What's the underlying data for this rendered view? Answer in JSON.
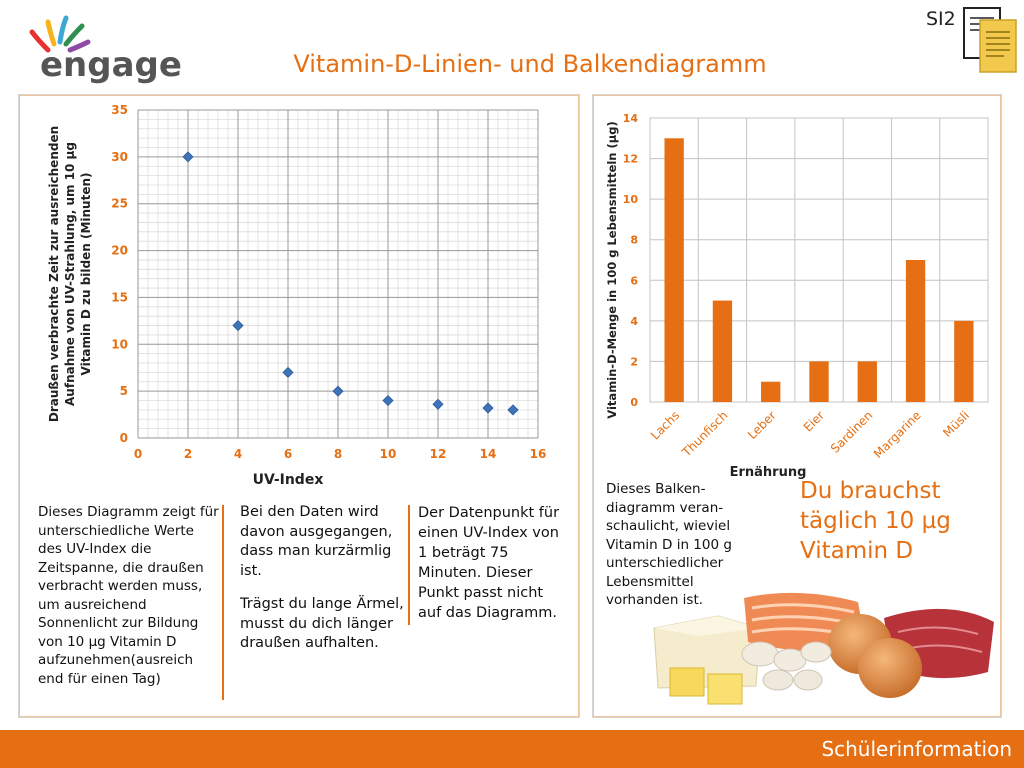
{
  "header": {
    "logo_text": "engage",
    "title": "Vitamin-D-Linien- und Balkendiagramm",
    "badge": "SI2"
  },
  "chart_data": [
    {
      "type": "scatter",
      "xlabel": "UV-Index",
      "ylabel_lines": [
        "Draußen verbrachte Zeit zur ausreichenden",
        "Aufnahme von UV-Strahlung, um 10 µg",
        "Vitamin D zu bilden (Minuten)"
      ],
      "xlim": [
        0,
        16
      ],
      "ylim": [
        0,
        35
      ],
      "xticks": [
        0,
        2,
        4,
        6,
        8,
        10,
        12,
        14,
        16
      ],
      "yticks": [
        0,
        5,
        10,
        15,
        20,
        25,
        30,
        35
      ],
      "grid": true,
      "x": [
        2,
        4,
        6,
        8,
        10,
        12,
        14,
        15
      ],
      "y": [
        30,
        12,
        7,
        5,
        4,
        3.6,
        3.2,
        3
      ],
      "color": "#3e73b9"
    },
    {
      "type": "bar",
      "categories": [
        "Lachs",
        "Thunfisch",
        "Leber",
        "Eier",
        "Sardinen",
        "Margarine",
        "Müsli"
      ],
      "values": [
        13,
        5,
        1,
        2,
        2,
        7,
        4
      ],
      "xlabel": "Ernährung",
      "ylabel": "Vitamin-D-Menge in 100 g Lebensmitteln (µg)",
      "ylim": [
        0,
        14
      ],
      "yticks": [
        0,
        2,
        4,
        6,
        8,
        10,
        12,
        14
      ],
      "grid": true,
      "color": "#e56f12"
    }
  ],
  "texts": {
    "t1": "Dieses Diagramm zeigt für unterschiedliche Werte des UV-Index die Zeitspanne, die draußen verbracht werden muss, um ausreichend Sonnenlicht zur Bildung von 10 µg Vitamin D aufzunehmen(ausreich end für einen Tag)",
    "t2": "Bei den Daten wird davon ausgegangen, dass man kurzärmlig ist.",
    "t3": "Trägst du lange Ärmel, musst du dich länger draußen aufhalten.",
    "t4": "Der Datenpunkt für einen UV-Index von 1 beträgt 75 Minuten. Dieser Punkt passt nicht auf das Diagramm.",
    "t5": "Dieses Balken-diagramm veran-schaulicht, wieviel Vitamin D in 100 g unterschiedlicher Lebensmittel vorhanden ist.",
    "big": "Du brauchst täglich 10 µg Vitamin D"
  },
  "footer": {
    "label": "Schülerinformation"
  },
  "colors": {
    "accent": "#e56f12",
    "point": "#3e73b9"
  },
  "icons": [
    "logo-rays-icon",
    "document-icon",
    "food-image"
  ]
}
